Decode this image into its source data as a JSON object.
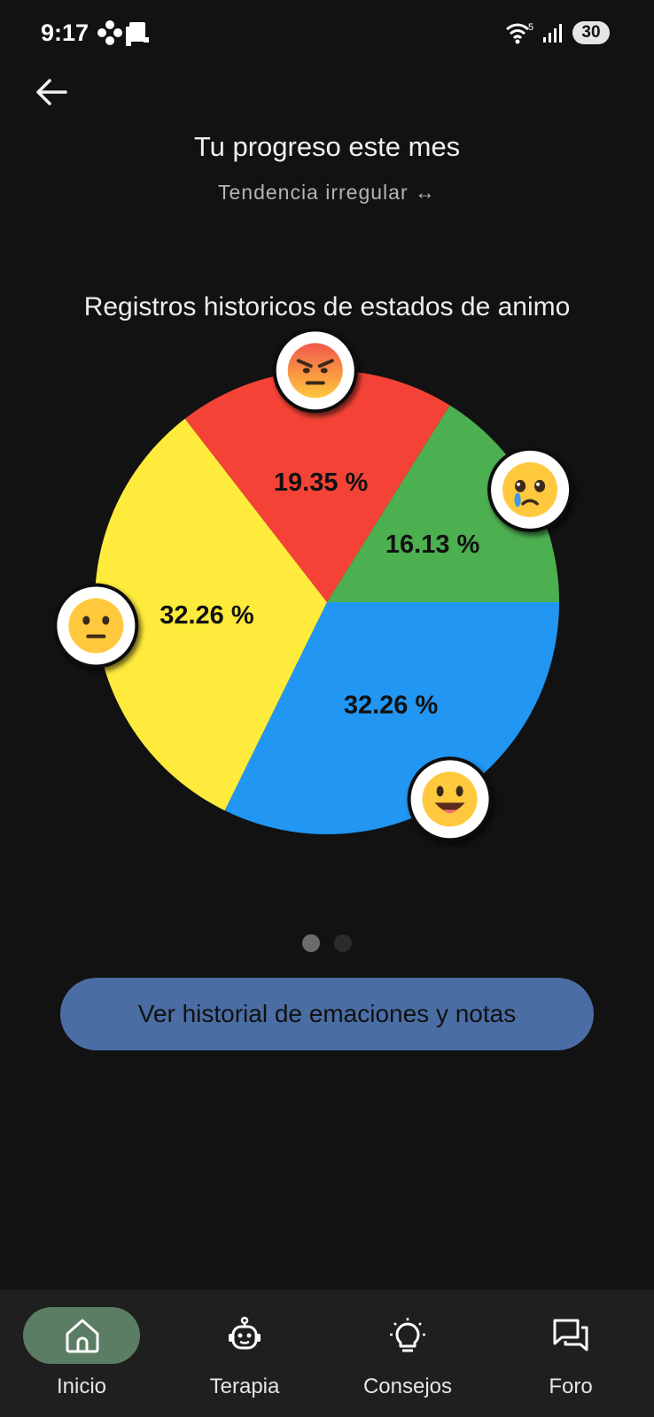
{
  "status_bar": {
    "time": "9:17",
    "wifi_badge": "5",
    "battery": "30"
  },
  "header": {
    "title": "Tu progreso este mes",
    "subtitle": "Tendencia irregular ↔"
  },
  "chart_data": {
    "type": "pie",
    "title": "Registros historicos de estados de animo",
    "slices": [
      {
        "label": "32.26 %",
        "value": 32.26,
        "color": "#2196F3",
        "emoji": "happy-face-icon"
      },
      {
        "label": "32.26 %",
        "value": 32.26,
        "color": "#FFEB3B",
        "emoji": "neutral-face-icon"
      },
      {
        "label": "19.35 %",
        "value": 19.35,
        "color": "#F44336",
        "emoji": "angry-face-icon"
      },
      {
        "label": "16.13 %",
        "value": 16.13,
        "color": "#4CAF50",
        "emoji": "crying-face-icon"
      }
    ]
  },
  "pager": {
    "pages": 2,
    "active": 0
  },
  "actions": {
    "history_button": "Ver historial de emaciones y notas"
  },
  "nav": {
    "items": [
      {
        "label": "Inicio",
        "icon": "home-icon",
        "active": true
      },
      {
        "label": "Terapia",
        "icon": "robot-icon",
        "active": false
      },
      {
        "label": "Consejos",
        "icon": "lightbulb-icon",
        "active": false
      },
      {
        "label": "Foro",
        "icon": "forum-icon",
        "active": false
      }
    ]
  }
}
